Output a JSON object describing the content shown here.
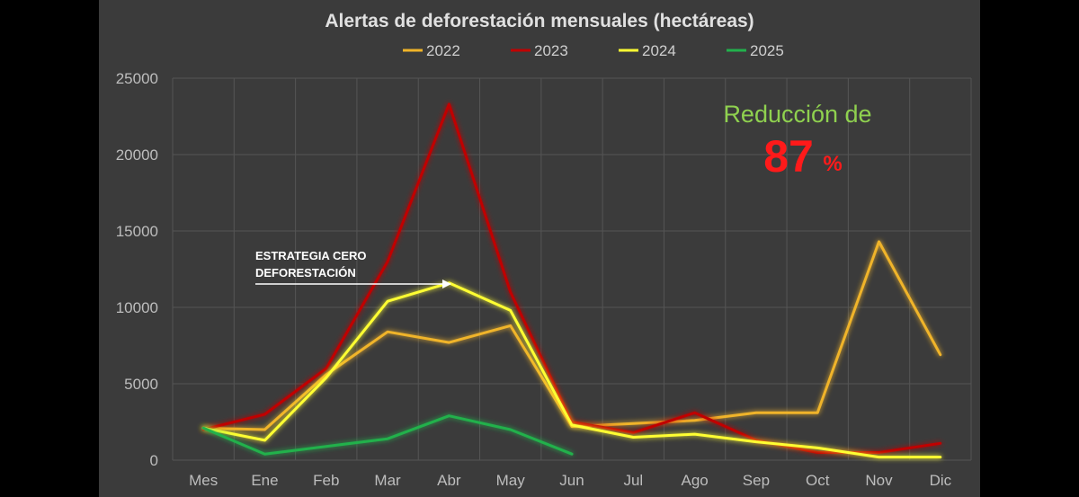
{
  "chart_data": {
    "type": "line",
    "title": "Alertas de deforestación mensuales (hectáreas)",
    "categories": [
      "Mes",
      "Ene",
      "Feb",
      "Mar",
      "Abr",
      "May",
      "Jun",
      "Jul",
      "Ago",
      "Sep",
      "Oct",
      "Nov",
      "Dic"
    ],
    "ylim": [
      0,
      25000
    ],
    "yticks": [
      "0",
      "5000",
      "10000",
      "15000",
      "20000",
      "25000"
    ],
    "grid": true,
    "legend_position": "top-center",
    "series": [
      {
        "name": "2022",
        "color": "#f0b429",
        "values": [
          2100,
          2000,
          5600,
          8400,
          7700,
          8800,
          2200,
          2400,
          2600,
          3100,
          3100,
          14300,
          6900
        ]
      },
      {
        "name": "2023",
        "color": "#c00000",
        "values": [
          2000,
          3000,
          6000,
          13000,
          23300,
          11000,
          2500,
          1800,
          3100,
          1300,
          500,
          500,
          1100
        ]
      },
      {
        "name": "2024",
        "color": "#ffff33",
        "values": [
          2100,
          1300,
          5400,
          10400,
          11600,
          9800,
          2300,
          1500,
          1700,
          1200,
          800,
          200,
          200
        ]
      },
      {
        "name": "2025",
        "color": "#22b14c",
        "values": [
          2100,
          400,
          900,
          1400,
          2900,
          2000,
          400,
          null,
          null,
          null,
          null,
          null,
          null
        ]
      }
    ],
    "annotations": {
      "reduction_label": "Reducción de",
      "reduction_value": "87",
      "reduction_unit": "%",
      "strategy_line1": "ESTRATEGIA CERO",
      "strategy_line2": "DEFORESTACIÓN"
    }
  }
}
